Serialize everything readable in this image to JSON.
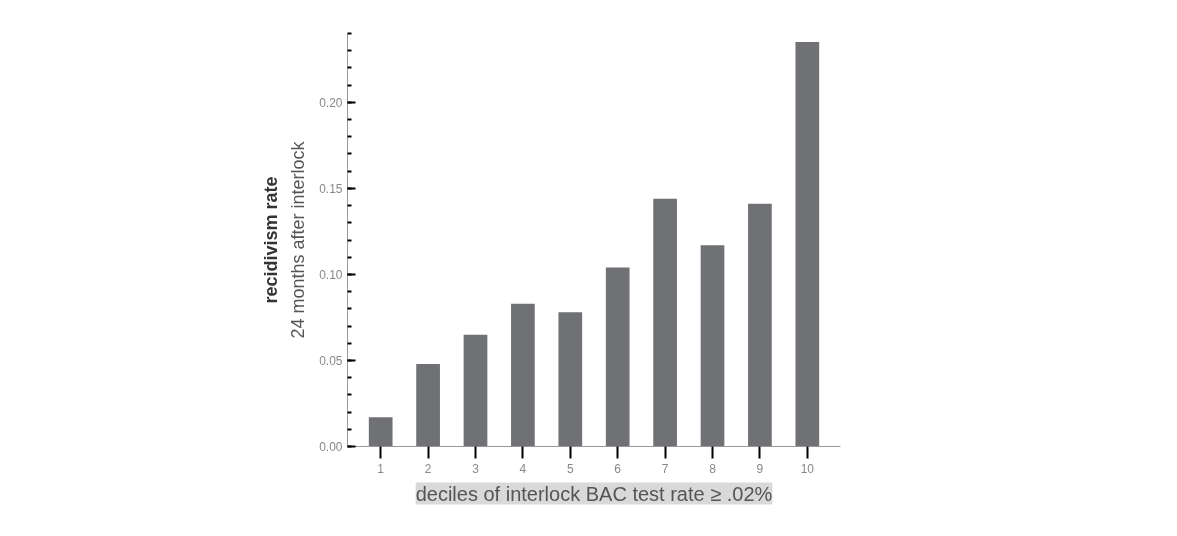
{
  "chart_data": {
    "type": "bar",
    "xlabel": "deciles of interlock BAC test rate ≥ .02%",
    "ylabel": "recidivism rate",
    "annotations": [
      "24 months after interlock"
    ],
    "categories": [
      "1",
      "2",
      "3",
      "4",
      "5",
      "6",
      "7",
      "8",
      "9",
      "10"
    ],
    "values": [
      0.017,
      0.048,
      0.065,
      0.083,
      0.078,
      0.104,
      0.144,
      0.117,
      0.141,
      0.235
    ],
    "color": "#707174",
    "ylim": [
      0,
      0.24
    ],
    "yticks": [
      {
        "value": 0,
        "label": "0.00"
      },
      {
        "value": 0.05,
        "label": "0.05"
      },
      {
        "value": 0.1,
        "label": "0.10"
      },
      {
        "value": 0.15,
        "label": "0.15"
      },
      {
        "value": 0.2,
        "label": "0.20"
      }
    ],
    "grid": false
  }
}
